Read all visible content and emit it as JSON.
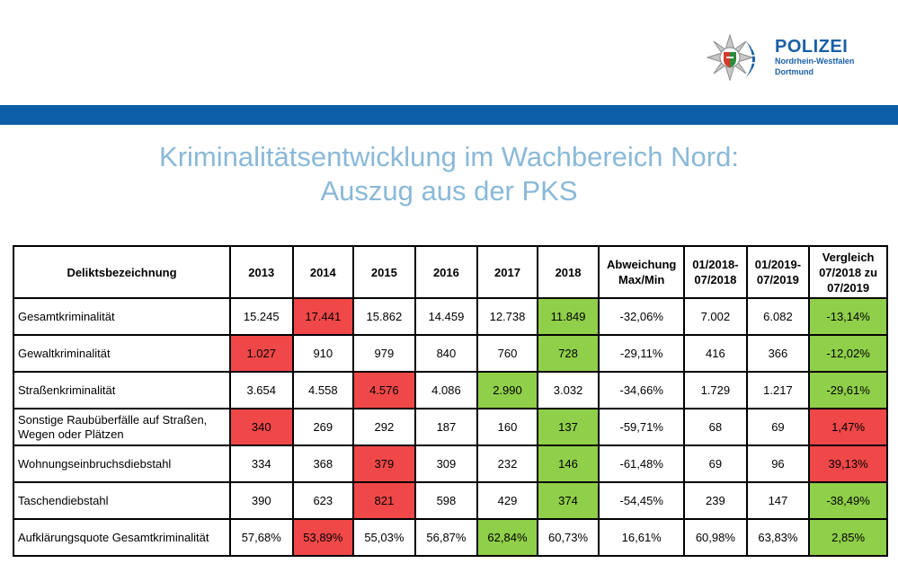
{
  "logo": {
    "title": "POLIZEI",
    "subtitle1": "Nordrhein-Westfalen",
    "subtitle2": "Dortmund",
    "brand_color": "#1a5fa8"
  },
  "title": {
    "line1": "Kriminalitätsentwicklung im Wachbereich Nord:",
    "line2": "Auszug aus der PKS"
  },
  "colors": {
    "band": "#0d5ea8",
    "title": "#8ab9d8",
    "red": "#f04848",
    "green": "#8fcf49"
  },
  "table": {
    "headers": [
      "Deliktsbezeichnung",
      "2013",
      "2014",
      "2015",
      "2016",
      "2017",
      "2018",
      "Abweichung Max/Min",
      "01/2018-07/2018",
      "01/2019-07/2019",
      "Vergleich 07/2018 zu 07/2019"
    ],
    "rows": [
      {
        "name": "Gesamtkriminalität",
        "cells": [
          "15.245",
          "17.441",
          "15.862",
          "14.459",
          "12.738",
          "11.849",
          "-32,06%",
          "7.002",
          "6.082",
          "-13,14%"
        ],
        "hl": [
          "",
          "red",
          "",
          "",
          "",
          "green",
          "",
          "",
          "",
          "green"
        ]
      },
      {
        "name": "Gewaltkriminalität",
        "cells": [
          "1.027",
          "910",
          "979",
          "840",
          "760",
          "728",
          "-29,11%",
          "416",
          "366",
          "-12,02%"
        ],
        "hl": [
          "red",
          "",
          "",
          "",
          "",
          "green",
          "",
          "",
          "",
          "green"
        ]
      },
      {
        "name": "Straßenkriminalität",
        "cells": [
          "3.654",
          "4.558",
          "4.576",
          "4.086",
          "2.990",
          "3.032",
          "-34,66%",
          "1.729",
          "1.217",
          "-29,61%"
        ],
        "hl": [
          "",
          "",
          "red",
          "",
          "green",
          "",
          "",
          "",
          "",
          "green"
        ]
      },
      {
        "name": "Sonstige Raubüberfälle auf Straßen, Wegen oder Plätzen",
        "cells": [
          "340",
          "269",
          "292",
          "187",
          "160",
          "137",
          "-59,71%",
          "68",
          "69",
          "1,47%"
        ],
        "hl": [
          "red",
          "",
          "",
          "",
          "",
          "green",
          "",
          "",
          "",
          "red"
        ]
      },
      {
        "name": "Wohnungseinbruchsdiebstahl",
        "cells": [
          "334",
          "368",
          "379",
          "309",
          "232",
          "146",
          "-61,48%",
          "69",
          "96",
          "39,13%"
        ],
        "hl": [
          "",
          "",
          "red",
          "",
          "",
          "green",
          "",
          "",
          "",
          "red"
        ]
      },
      {
        "name": "Taschendiebstahl",
        "cells": [
          "390",
          "623",
          "821",
          "598",
          "429",
          "374",
          "-54,45%",
          "239",
          "147",
          "-38,49%"
        ],
        "hl": [
          "",
          "",
          "red",
          "",
          "",
          "green",
          "",
          "",
          "",
          "green"
        ]
      },
      {
        "name": "Aufklärungsquote Gesamtkriminalität",
        "cells": [
          "57,68%",
          "53,89%",
          "55,03%",
          "56,87%",
          "62,84%",
          "60,73%",
          "16,61%",
          "60,98%",
          "63,83%",
          "2,85%"
        ],
        "hl": [
          "",
          "red",
          "",
          "",
          "green",
          "",
          "",
          "",
          "",
          "green"
        ]
      }
    ]
  }
}
